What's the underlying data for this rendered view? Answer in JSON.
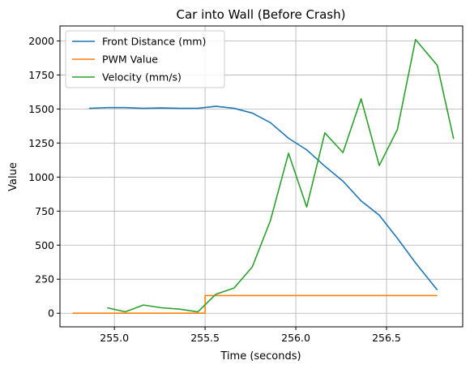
{
  "chart_data": {
    "type": "line",
    "title": "Car into Wall (Before Crash)",
    "xlabel": "Time (seconds)",
    "ylabel": "Value",
    "xlim": [
      254.7,
      256.92
    ],
    "ylim": [
      -100,
      2110
    ],
    "xticks": [
      255.0,
      255.5,
      256.0,
      256.5
    ],
    "xtick_labels": [
      "255.0",
      "255.5",
      "256.0",
      "256.5"
    ],
    "yticks": [
      0,
      250,
      500,
      750,
      1000,
      1250,
      1500,
      1750,
      2000
    ],
    "ytick_labels": [
      "0",
      "250",
      "500",
      "750",
      "1000",
      "1250",
      "1500",
      "1750",
      "2000"
    ],
    "grid": true,
    "legend_position": "top-left",
    "series": [
      {
        "name": "Front Distance (mm)",
        "color": "#1f77b4",
        "step": false,
        "x": [
          254.86,
          254.96,
          255.06,
          255.16,
          255.26,
          255.36,
          255.46,
          255.56,
          255.66,
          255.76,
          255.86,
          255.96,
          256.06,
          256.16,
          256.26,
          256.36,
          256.46,
          256.56,
          256.66,
          256.78
        ],
        "y": [
          1505,
          1510,
          1510,
          1505,
          1508,
          1505,
          1505,
          1520,
          1505,
          1470,
          1400,
          1285,
          1200,
          1080,
          970,
          825,
          720,
          550,
          370,
          170
        ]
      },
      {
        "name": "PWM Value",
        "color": "#ff7f0e",
        "step": true,
        "x": [
          254.77,
          255.5,
          255.5,
          256.78
        ],
        "y": [
          0,
          0,
          130,
          130
        ]
      },
      {
        "name": "Velocity (mm/s)",
        "color": "#2ca02c",
        "step": false,
        "x": [
          254.96,
          255.06,
          255.16,
          255.26,
          255.36,
          255.46,
          255.56,
          255.66,
          255.76,
          255.86,
          255.96,
          256.06,
          256.16,
          256.26,
          256.36,
          256.46,
          256.56,
          256.66,
          256.78,
          256.87
        ],
        "y": [
          40,
          10,
          60,
          40,
          30,
          10,
          140,
          185,
          340,
          680,
          1175,
          780,
          1325,
          1180,
          1575,
          1085,
          1350,
          2010,
          1820,
          1280
        ]
      }
    ]
  }
}
